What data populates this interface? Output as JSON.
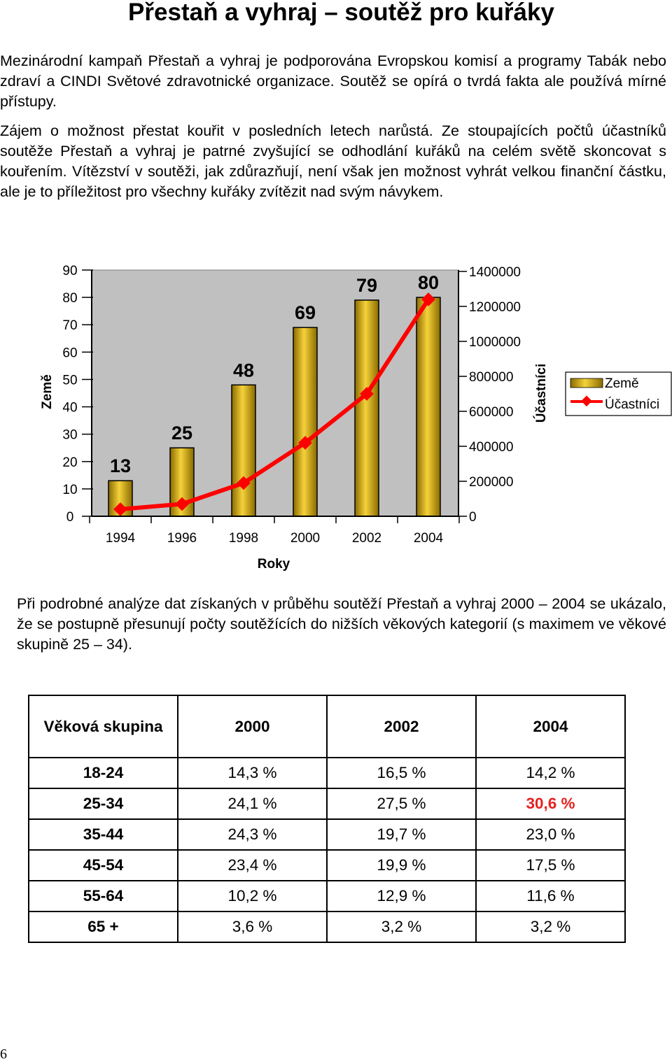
{
  "title": "Přestaň a vyhraj – soutěž pro kuřáky",
  "intro": {
    "paragraph1": "Mezinárodní kampaň Přestaň a vyhraj je podporována Evropskou komisí a programy Tabák nebo zdraví a CINDI Světové zdravotnické organizace. Soutěž se opírá o tvrdá fakta ale používá mírné přístupy.",
    "paragraph2": "Zájem o možnost přestat kouřit v posledních letech narůstá. Ze stoupajících počtů účastníků soutěže Přestaň a vyhraj je patrné zvyšující se odhodlání kuřáků na celém světě skoncovat s kouřením. Vítězství v soutěži, jak zdůrazňují, není však jen možnost vyhrát velkou finanční částku, ale je to příležitost pro všechny kuřáky zvítězit nad svým návykem."
  },
  "chart_data": {
    "type": "bar+line",
    "title": "",
    "categories": [
      "1994",
      "1996",
      "1998",
      "2000",
      "2002",
      "2004"
    ],
    "xlabel": "Roky",
    "ylabel_left": "Země",
    "ylabel_right": "Účastníci",
    "ylim_left": [
      0,
      90
    ],
    "yticks_left": [
      0,
      10,
      20,
      30,
      40,
      50,
      60,
      70,
      80,
      90
    ],
    "ylim_right": [
      0,
      1400000
    ],
    "yticks_right": [
      0,
      200000,
      400000,
      600000,
      800000,
      1000000,
      1200000,
      1400000
    ],
    "legend_position": "right",
    "series": [
      {
        "name": "Země",
        "type": "bar",
        "axis": "left",
        "color": "#c8a000",
        "values": [
          13,
          25,
          48,
          69,
          79,
          80
        ],
        "labels": [
          "13",
          "25",
          "48",
          "69",
          "79",
          "80"
        ]
      },
      {
        "name": "Účastníci",
        "type": "line",
        "axis": "right",
        "color": "#ff0000",
        "values": [
          40000,
          70000,
          190000,
          420000,
          700000,
          1240000
        ]
      }
    ],
    "plot_background": "#c0c0c0"
  },
  "analysis_text": "Při podrobné analýze dat získaných v průběhu soutěží Přestaň a vyhraj 2000 – 2004 se ukázalo, že se postupně přesunují počty soutěžících do nižších věkových kategorií (s maximem ve věkové skupině 25 – 34).",
  "age_table": {
    "headers": [
      "Věková skupina",
      "2000",
      "2002",
      "2004"
    ],
    "rows": [
      {
        "group": "18-24",
        "v2000": "14,3 %",
        "v2002": "16,5 %",
        "v2004": "14,2 %"
      },
      {
        "group": "25-34",
        "v2000": "24,1 %",
        "v2002": "27,5 %",
        "v2004": "30,6 %"
      },
      {
        "group": "35-44",
        "v2000": "24,3 %",
        "v2002": "19,7 %",
        "v2004": "23,0 %"
      },
      {
        "group": "45-54",
        "v2000": "23,4 %",
        "v2002": "19,9 %",
        "v2004": "17,5 %"
      },
      {
        "group": "55-64",
        "v2000": "10,2 %",
        "v2002": "12,9 %",
        "v2004": "11,6 %"
      },
      {
        "group": "65 +",
        "v2000": "3,6 %",
        "v2002": "3,2 %",
        "v2004": "3,2 %"
      }
    ],
    "highlight_color": "#e6201e"
  },
  "page_number": "6"
}
